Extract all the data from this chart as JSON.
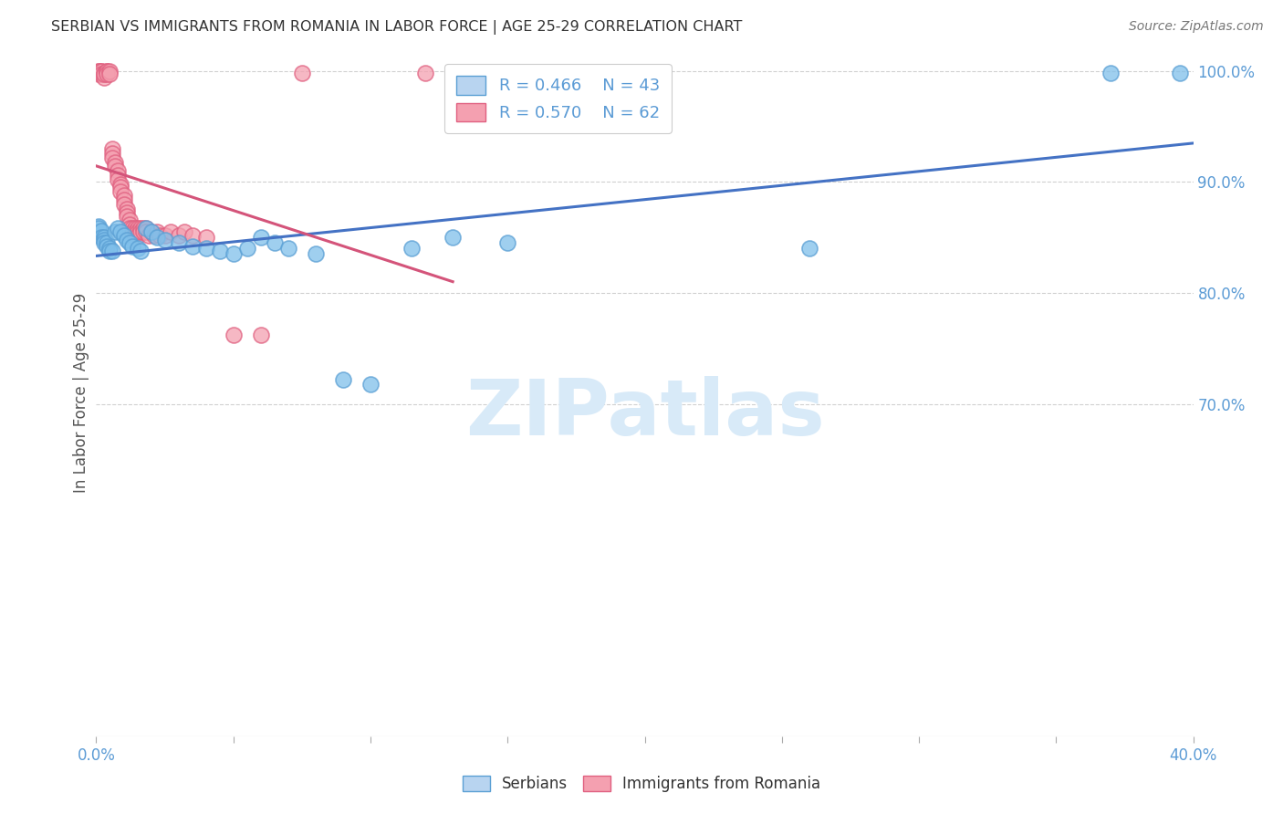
{
  "title": "SERBIAN VS IMMIGRANTS FROM ROMANIA IN LABOR FORCE | AGE 25-29 CORRELATION CHART",
  "source": "Source: ZipAtlas.com",
  "ylabel": "In Labor Force | Age 25-29",
  "xlim": [
    0.0,
    0.4
  ],
  "ylim": [
    0.4,
    1.02
  ],
  "xticks": [
    0.0,
    0.05,
    0.1,
    0.15,
    0.2,
    0.25,
    0.3,
    0.35,
    0.4
  ],
  "xticklabels": [
    "0.0%",
    "",
    "",
    "",
    "",
    "",
    "",
    "",
    "40.0%"
  ],
  "right_yticks": [
    0.7,
    0.8,
    0.9,
    1.0
  ],
  "right_yticklabels": [
    "70.0%",
    "80.0%",
    "90.0%",
    "100.0%"
  ],
  "serbian_color": "#7fbfea",
  "serbian_edge": "#5a9fd4",
  "romanian_color": "#f4a0b0",
  "romanian_edge": "#e06080",
  "serbian_line_color": "#4472c4",
  "romanian_line_color": "#d4547a",
  "serbian_R": 0.466,
  "serbian_N": 43,
  "romanian_R": 0.57,
  "romanian_N": 62,
  "serbian_x": [
    0.001,
    0.001,
    0.002,
    0.002,
    0.003,
    0.003,
    0.003,
    0.004,
    0.004,
    0.005,
    0.005,
    0.006,
    0.007,
    0.008,
    0.009,
    0.01,
    0.011,
    0.012,
    0.013,
    0.015,
    0.016,
    0.018,
    0.02,
    0.022,
    0.025,
    0.03,
    0.035,
    0.04,
    0.045,
    0.05,
    0.055,
    0.06,
    0.065,
    0.07,
    0.08,
    0.09,
    0.1,
    0.115,
    0.13,
    0.15,
    0.26,
    0.37,
    0.395
  ],
  "serbian_y": [
    0.86,
    0.858,
    0.856,
    0.85,
    0.85,
    0.848,
    0.845,
    0.845,
    0.842,
    0.84,
    0.838,
    0.838,
    0.855,
    0.858,
    0.855,
    0.852,
    0.848,
    0.845,
    0.842,
    0.84,
    0.838,
    0.858,
    0.855,
    0.85,
    0.848,
    0.845,
    0.842,
    0.84,
    0.838,
    0.835,
    0.84,
    0.85,
    0.845,
    0.84,
    0.835,
    0.722,
    0.718,
    0.84,
    0.85,
    0.845,
    0.84,
    0.998,
    0.998
  ],
  "romanian_x": [
    0.001,
    0.001,
    0.001,
    0.002,
    0.002,
    0.002,
    0.003,
    0.003,
    0.003,
    0.004,
    0.004,
    0.004,
    0.005,
    0.005,
    0.006,
    0.006,
    0.006,
    0.007,
    0.007,
    0.008,
    0.008,
    0.008,
    0.009,
    0.009,
    0.009,
    0.01,
    0.01,
    0.01,
    0.011,
    0.011,
    0.011,
    0.012,
    0.012,
    0.012,
    0.013,
    0.013,
    0.014,
    0.014,
    0.015,
    0.015,
    0.015,
    0.016,
    0.016,
    0.017,
    0.017,
    0.018,
    0.018,
    0.019,
    0.02,
    0.021,
    0.022,
    0.023,
    0.025,
    0.027,
    0.03,
    0.032,
    0.035,
    0.04,
    0.05,
    0.06,
    0.075,
    0.12
  ],
  "romanian_y": [
    1.0,
    1.0,
    0.997,
    1.0,
    1.0,
    0.997,
    0.997,
    0.994,
    0.997,
    1.0,
    1.0,
    0.997,
    1.0,
    0.997,
    0.93,
    0.926,
    0.922,
    0.918,
    0.914,
    0.91,
    0.906,
    0.902,
    0.898,
    0.895,
    0.891,
    0.888,
    0.884,
    0.88,
    0.876,
    0.872,
    0.869,
    0.866,
    0.862,
    0.858,
    0.858,
    0.855,
    0.858,
    0.855,
    0.858,
    0.855,
    0.852,
    0.858,
    0.855,
    0.858,
    0.855,
    0.858,
    0.855,
    0.852,
    0.855,
    0.852,
    0.855,
    0.852,
    0.852,
    0.855,
    0.852,
    0.855,
    0.852,
    0.85,
    0.762,
    0.762,
    0.998,
    0.998
  ],
  "grid_yticks": [
    0.7,
    0.8,
    0.9,
    1.0
  ],
  "watermark_text": "ZIPatlas",
  "watermark_color": "#d8eaf8",
  "bg_color": "#ffffff",
  "grid_color": "#d0d0d0",
  "title_color": "#333333",
  "axis_tick_color": "#5b9bd5"
}
